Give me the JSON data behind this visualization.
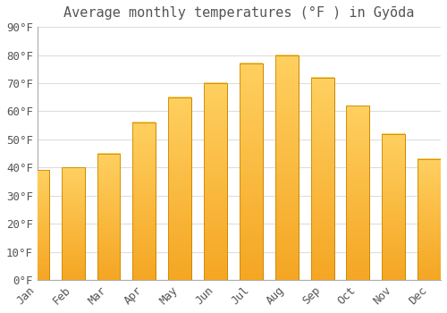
{
  "title": "Average monthly temperatures (°F ) in Gyōda",
  "months": [
    "Jan",
    "Feb",
    "Mar",
    "Apr",
    "May",
    "Jun",
    "Jul",
    "Aug",
    "Sep",
    "Oct",
    "Nov",
    "Dec"
  ],
  "values": [
    39,
    40,
    45,
    56,
    65,
    70,
    77,
    80,
    72,
    62,
    52,
    43
  ],
  "bar_color_bottom": "#F5A623",
  "bar_color_top": "#FFD060",
  "bar_edge_color": "#CC8800",
  "background_color": "#FFFFFF",
  "grid_color": "#DDDDDD",
  "text_color": "#555555",
  "ylim": [
    0,
    90
  ],
  "ytick_step": 10,
  "title_fontsize": 11,
  "tick_fontsize": 9,
  "figsize": [
    5.0,
    3.5
  ],
  "dpi": 100
}
